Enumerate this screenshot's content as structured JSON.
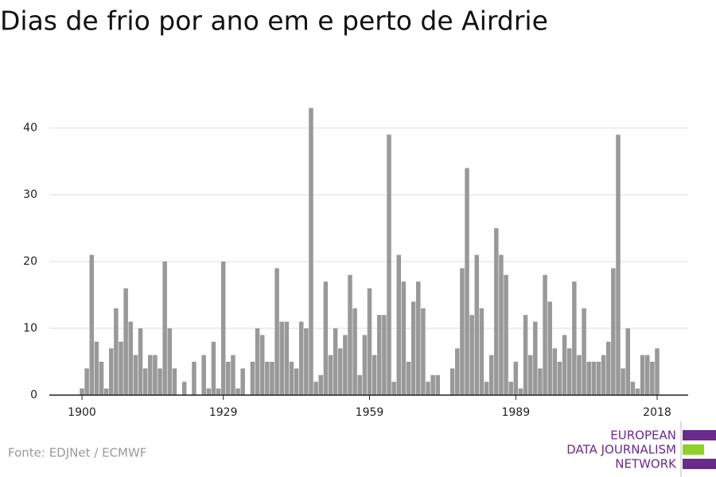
{
  "chart_data": {
    "type": "bar",
    "title": "Dias de frio por ano em e perto de Airdrie",
    "source": "Fonte: EDJNet / ECMWF",
    "logo": [
      "EUROPEAN",
      "DATA JOURNALISM",
      "NETWORK"
    ],
    "color": "#999999",
    "x": [
      1900,
      1901,
      1902,
      1903,
      1904,
      1905,
      1906,
      1907,
      1908,
      1909,
      1910,
      1911,
      1912,
      1913,
      1914,
      1915,
      1916,
      1917,
      1918,
      1919,
      1920,
      1921,
      1922,
      1923,
      1924,
      1925,
      1926,
      1927,
      1928,
      1929,
      1930,
      1931,
      1932,
      1933,
      1934,
      1935,
      1936,
      1937,
      1938,
      1939,
      1940,
      1941,
      1942,
      1943,
      1944,
      1945,
      1946,
      1947,
      1948,
      1949,
      1950,
      1951,
      1952,
      1953,
      1954,
      1955,
      1956,
      1957,
      1958,
      1959,
      1960,
      1961,
      1962,
      1963,
      1964,
      1965,
      1966,
      1967,
      1968,
      1969,
      1970,
      1971,
      1972,
      1973,
      1974,
      1975,
      1976,
      1977,
      1978,
      1979,
      1980,
      1981,
      1982,
      1983,
      1984,
      1985,
      1986,
      1987,
      1988,
      1989,
      1990,
      1991,
      1992,
      1993,
      1994,
      1995,
      1996,
      1997,
      1998,
      1999,
      2000,
      2001,
      2002,
      2003,
      2004,
      2005,
      2006,
      2007,
      2008,
      2009,
      2010,
      2011,
      2012,
      2013,
      2014,
      2015,
      2016,
      2017,
      2018
    ],
    "values": [
      1,
      4,
      21,
      8,
      5,
      1,
      7,
      13,
      8,
      16,
      11,
      6,
      10,
      4,
      6,
      6,
      4,
      20,
      10,
      4,
      0,
      2,
      0,
      5,
      0,
      6,
      1,
      8,
      1,
      20,
      5,
      6,
      1,
      4,
      0,
      5,
      10,
      9,
      5,
      5,
      19,
      11,
      11,
      5,
      4,
      11,
      10,
      43,
      2,
      3,
      17,
      6,
      10,
      7,
      9,
      18,
      13,
      3,
      9,
      16,
      6,
      12,
      12,
      39,
      2,
      21,
      17,
      5,
      14,
      17,
      13,
      2,
      3,
      3,
      0,
      0,
      4,
      7,
      19,
      34,
      12,
      21,
      13,
      2,
      6,
      25,
      21,
      18,
      2,
      5,
      1,
      12,
      6,
      11,
      4,
      18,
      14,
      7,
      5,
      9,
      7,
      17,
      6,
      13,
      5,
      5,
      5,
      6,
      8,
      19,
      39,
      4,
      10,
      2,
      1,
      6,
      6,
      5,
      7
    ],
    "xlim": [
      1900,
      2018
    ],
    "xticks": [
      1900,
      1929,
      1959,
      1989,
      2018
    ],
    "ylim": [
      0,
      45
    ],
    "yticks": [
      0,
      10,
      20,
      30,
      40
    ],
    "grid": true
  }
}
